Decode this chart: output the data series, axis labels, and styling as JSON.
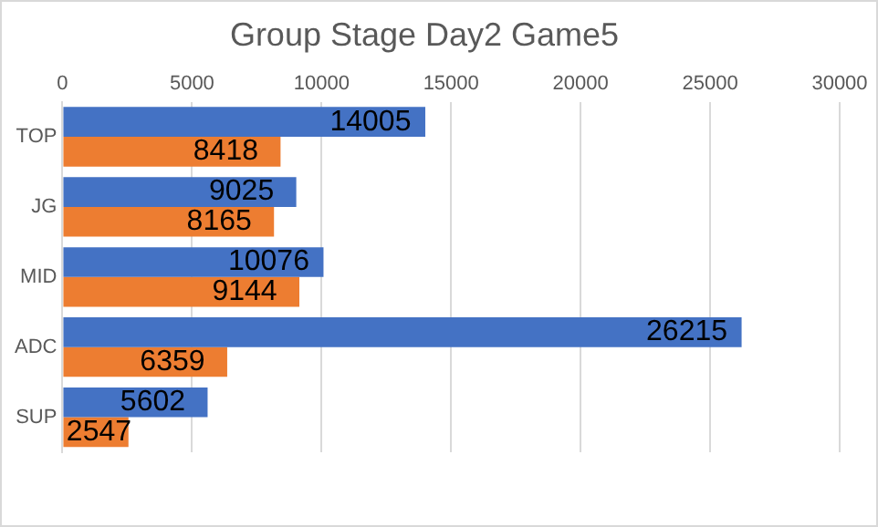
{
  "chart_data": {
    "type": "bar",
    "orientation": "horizontal",
    "title": "Group Stage Day2 Game5",
    "categories": [
      "TOP",
      "JG",
      "MID",
      "ADC",
      "SUP"
    ],
    "series": [
      {
        "color": "#4472c4",
        "values": [
          14005,
          9025,
          10076,
          26215,
          5602
        ]
      },
      {
        "color": "#ed7d31",
        "values": [
          8418,
          8165,
          9144,
          6359,
          2547
        ]
      }
    ],
    "xlim": [
      0,
      30000
    ],
    "xticks": [
      0,
      5000,
      10000,
      15000,
      20000,
      25000,
      30000
    ],
    "grid": "x",
    "data_labels": true
  }
}
